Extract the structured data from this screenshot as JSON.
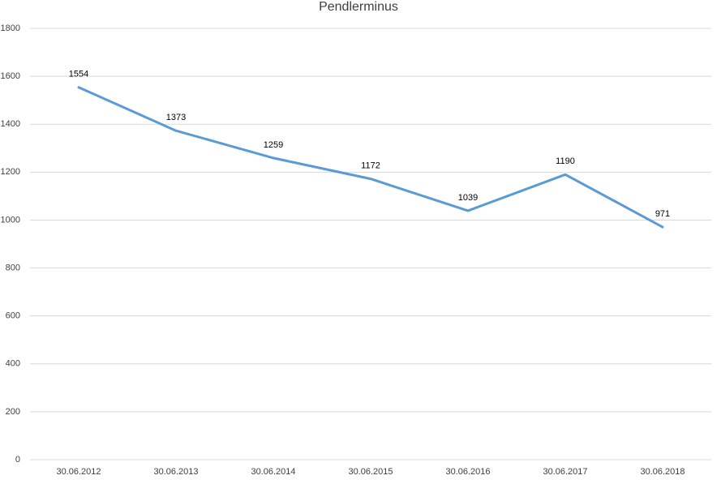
{
  "chart_data": {
    "type": "line",
    "title": "Pendlerminus",
    "categories": [
      "30.06.2012",
      "30.06.2013",
      "30.06.2014",
      "30.06.2015",
      "30.06.2016",
      "30.06.2017",
      "30.06.2018"
    ],
    "values": [
      1554,
      1373,
      1259,
      1172,
      1039,
      1190,
      971
    ],
    "color": "#5b9bd5",
    "ylim": [
      0,
      1800
    ],
    "yticks": [
      0,
      200,
      400,
      600,
      800,
      1000,
      1200,
      1400,
      1600,
      1800
    ],
    "grid": true
  }
}
